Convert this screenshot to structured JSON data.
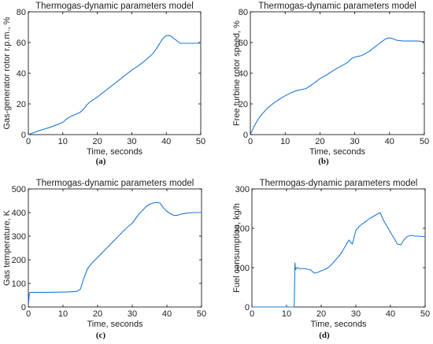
{
  "colors": {
    "series_line": "#1f77d4",
    "axis": "#000000",
    "text": "#222222"
  },
  "chart_data": [
    {
      "type": "line",
      "caption": "(a)",
      "title": "Thermogas-dynamic parameters model",
      "xlabel": "Time, seconds",
      "ylabel": "Gas-generator rotor r.p.m., %",
      "xlim": [
        0,
        50
      ],
      "ylim": [
        0,
        80
      ],
      "xticks": [
        "0",
        "10",
        "20",
        "30",
        "40",
        "50"
      ],
      "yticks": [
        "0",
        "20",
        "40",
        "60",
        "80"
      ],
      "grid": false,
      "x": [
        0,
        3,
        6,
        9,
        10,
        11,
        12,
        13,
        14,
        15,
        16,
        17,
        18,
        20,
        22,
        24,
        26,
        28,
        30,
        32,
        34,
        36,
        37,
        38,
        39,
        40,
        41,
        41.5,
        42,
        44,
        46,
        48,
        49.5,
        50
      ],
      "y": [
        0,
        2.5,
        4.5,
        7,
        8,
        10,
        11.5,
        12.5,
        13.5,
        14.5,
        16.5,
        19.5,
        21.5,
        24.5,
        28,
        31.5,
        35,
        38.5,
        42,
        45,
        48.5,
        52.5,
        55.5,
        59,
        62.5,
        64.5,
        64.5,
        64,
        63,
        59.5,
        59.5,
        59.5,
        59.5,
        60
      ]
    },
    {
      "type": "line",
      "caption": "(b)",
      "title": "Thermogas-dynamic parameters model",
      "xlabel": "Time, seconds",
      "ylabel": "Free turbine rotor speed, %",
      "xlim": [
        0,
        50
      ],
      "ylim": [
        0,
        80
      ],
      "xticks": [
        "0",
        "10",
        "20",
        "30",
        "40",
        "50"
      ],
      "yticks": [
        "0",
        "20",
        "40",
        "60",
        "80"
      ],
      "grid": false,
      "x": [
        0,
        1,
        2,
        3,
        5,
        7,
        9,
        11,
        13,
        15,
        16,
        18,
        20,
        22,
        24,
        26,
        28,
        29,
        30,
        31,
        32,
        34,
        36,
        38,
        39,
        40,
        41,
        42,
        44,
        46,
        48,
        50
      ],
      "y": [
        0,
        5,
        9,
        12.5,
        17.5,
        21,
        24,
        26.5,
        28.5,
        29.5,
        30,
        33,
        36.5,
        39,
        42,
        44.5,
        47,
        49.5,
        50.5,
        51,
        51.5,
        54,
        57.5,
        61,
        62.5,
        63,
        62.5,
        61.5,
        61,
        61,
        61,
        60.5
      ]
    },
    {
      "type": "line",
      "caption": "(c)",
      "title": "Thermogas-dynamic parameters model",
      "xlabel": "Time, seconds",
      "ylabel": "Gas temperature, K",
      "xlim": [
        0,
        50
      ],
      "ylim": [
        0,
        500
      ],
      "xticks": [
        "0",
        "10",
        "20",
        "30",
        "40",
        "50"
      ],
      "yticks": [
        "0",
        "100",
        "200",
        "300",
        "400",
        "500"
      ],
      "grid": false,
      "x": [
        0,
        0.3,
        0.6,
        5,
        10,
        12,
        14,
        15,
        16,
        17,
        18,
        20,
        22,
        24,
        26,
        28,
        30,
        31,
        32,
        33,
        34,
        35,
        36,
        37,
        38,
        39,
        40,
        41,
        42,
        43,
        44,
        46,
        48,
        50
      ],
      "y": [
        5,
        60,
        62,
        62,
        63,
        64,
        66,
        75,
        120,
        160,
        180,
        210,
        240,
        270,
        300,
        330,
        355,
        375,
        395,
        410,
        425,
        435,
        440,
        443,
        440,
        420,
        405,
        395,
        388,
        388,
        393,
        398,
        400,
        400
      ]
    },
    {
      "type": "line",
      "caption": "(d)",
      "title": "Thermogas-dynamic parameters model",
      "xlabel": "Time, seconds",
      "ylabel": "Fuel consumption, kg/h",
      "xlim": [
        0,
        50
      ],
      "ylim": [
        0,
        300
      ],
      "xticks": [
        "0",
        "10",
        "20",
        "30",
        "40",
        "50"
      ],
      "yticks": [
        "0",
        "100",
        "200",
        "300"
      ],
      "grid": false,
      "x": [
        0,
        5,
        10,
        12.2,
        12.4,
        12.6,
        13,
        14,
        15,
        16,
        17,
        18,
        19,
        20,
        21,
        22,
        23,
        24,
        25,
        26,
        27,
        28,
        29,
        30,
        31,
        32,
        33,
        34,
        35,
        36,
        37,
        38,
        39,
        40,
        41,
        42,
        43,
        44,
        45,
        46,
        47,
        48,
        49,
        50
      ],
      "y": [
        0,
        0,
        0,
        0,
        112,
        95,
        100,
        97,
        98,
        96,
        94,
        86,
        88,
        92,
        95,
        100,
        108,
        118,
        128,
        140,
        155,
        170,
        160,
        195,
        205,
        212,
        218,
        225,
        230,
        235,
        240,
        220,
        205,
        190,
        175,
        160,
        158,
        172,
        180,
        182,
        180,
        180,
        179,
        179
      ]
    }
  ]
}
